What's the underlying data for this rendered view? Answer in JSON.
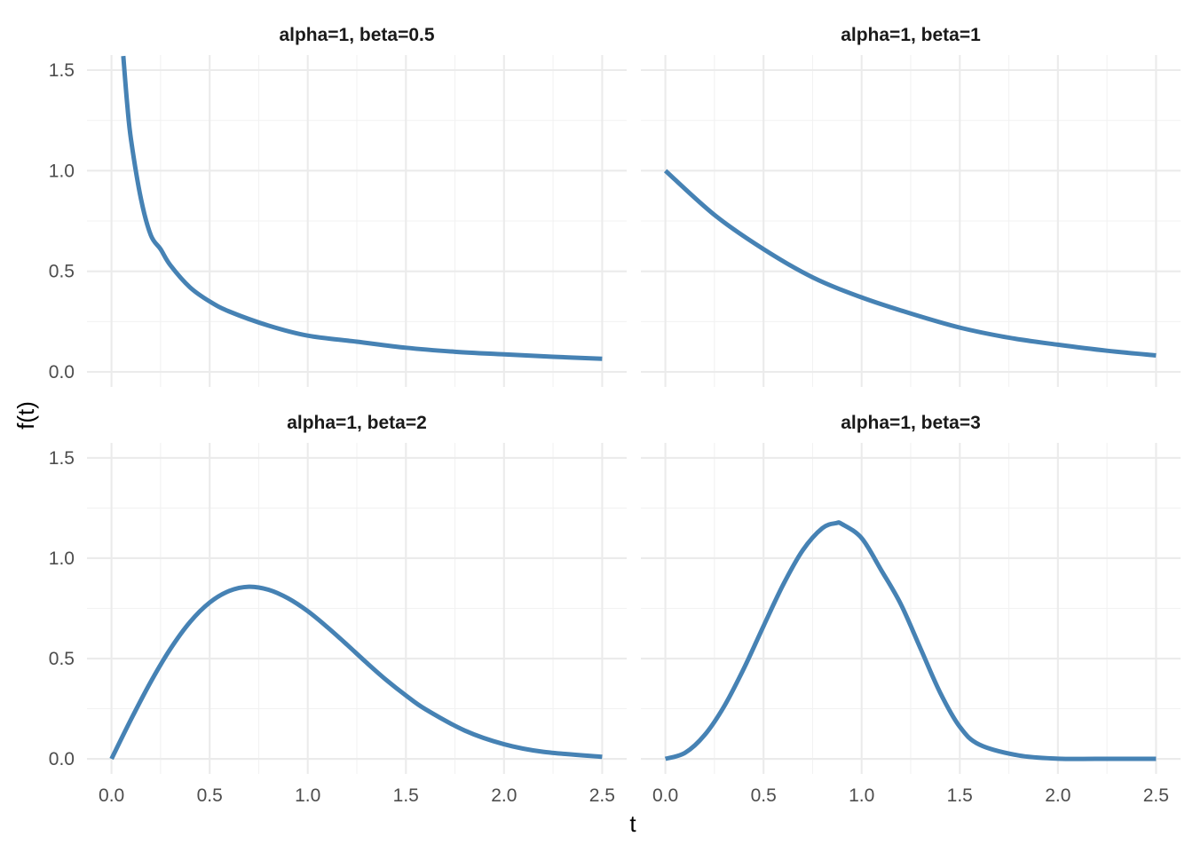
{
  "chart_data": {
    "type": "line",
    "xlabel": "t",
    "ylabel": "f(t)",
    "xlim": [
      0,
      2.5
    ],
    "ylim": [
      0,
      1.5
    ],
    "x_ticks": [
      "0.0",
      "0.5",
      "1.0",
      "1.5",
      "2.0",
      "2.5"
    ],
    "y_ticks": [
      "0.0",
      "0.5",
      "1.0",
      "1.5"
    ],
    "grid": true,
    "line_color": "#4682B4",
    "panels": [
      {
        "title": "alpha=1, beta=0.5",
        "x": [
          0.06,
          0.08,
          0.1,
          0.15,
          0.2,
          0.25,
          0.3,
          0.4,
          0.5,
          0.6,
          0.8,
          1.0,
          1.25,
          1.5,
          1.75,
          2.0,
          2.25,
          2.5
        ],
        "y": [
          1.57,
          1.33,
          1.15,
          0.86,
          0.68,
          0.61,
          0.53,
          0.42,
          0.35,
          0.3,
          0.23,
          0.18,
          0.15,
          0.12,
          0.1,
          0.087,
          0.075,
          0.065
        ]
      },
      {
        "title": "alpha=1, beta=1",
        "x": [
          0.0,
          0.25,
          0.5,
          0.75,
          1.0,
          1.25,
          1.5,
          1.75,
          2.0,
          2.25,
          2.5
        ],
        "y": [
          1.0,
          0.78,
          0.61,
          0.47,
          0.37,
          0.29,
          0.22,
          0.17,
          0.135,
          0.105,
          0.082
        ]
      },
      {
        "title": "alpha=1, beta=2",
        "x": [
          0.0,
          0.1,
          0.2,
          0.3,
          0.4,
          0.5,
          0.6,
          0.7,
          0.8,
          0.9,
          1.0,
          1.1,
          1.2,
          1.3,
          1.4,
          1.5,
          1.6,
          1.8,
          2.0,
          2.2,
          2.5
        ],
        "y": [
          0.0,
          0.198,
          0.384,
          0.548,
          0.682,
          0.779,
          0.837,
          0.858,
          0.843,
          0.8,
          0.736,
          0.656,
          0.569,
          0.479,
          0.393,
          0.316,
          0.247,
          0.141,
          0.073,
          0.035,
          0.01
        ]
      },
      {
        "title": "alpha=1, beta=3",
        "x": [
          0.0,
          0.1,
          0.2,
          0.3,
          0.4,
          0.5,
          0.6,
          0.7,
          0.8,
          0.87,
          0.9,
          1.0,
          1.1,
          1.2,
          1.3,
          1.4,
          1.5,
          1.6,
          1.8,
          2.0,
          2.2,
          2.5
        ],
        "y": [
          0.0,
          0.03,
          0.119,
          0.263,
          0.451,
          0.662,
          0.868,
          1.04,
          1.15,
          1.175,
          1.17,
          1.1,
          0.94,
          0.77,
          0.55,
          0.33,
          0.16,
          0.071,
          0.017,
          0.001,
          0.0,
          0.0
        ]
      }
    ]
  }
}
